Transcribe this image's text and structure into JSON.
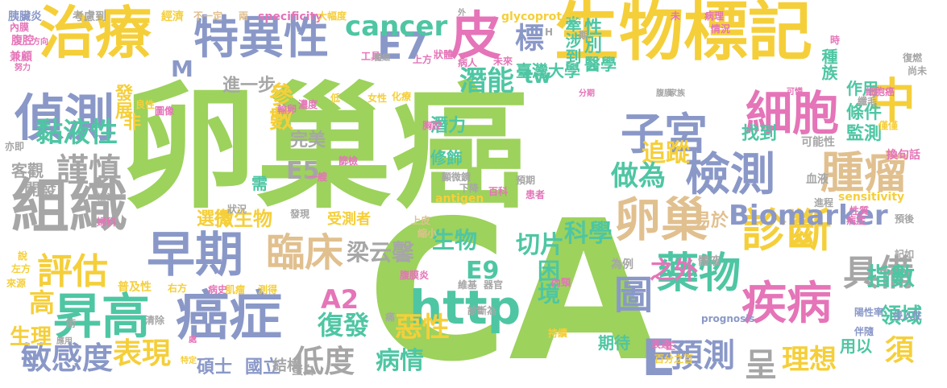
{
  "palette": {
    "green": "#9dd25c",
    "yellow": "#f5cf3a",
    "blue": "#8a98c8",
    "teal": "#4ec6a3",
    "pink": "#e574b8",
    "tan": "#e1c08f",
    "gray": "#a6a6a6",
    "orange": "#f1a55a",
    "light": "#cfcfcf"
  },
  "words": [
    "卵巢癌",
    "CA",
    "生物標記",
    "治療",
    "特異性",
    "皮",
    "E7",
    "偵測",
    "組織",
    "早期",
    "癌症",
    "昇高",
    "檢測",
    "細胞",
    "中",
    "腫瘤",
    "子宮",
    "卵巢",
    "診斷",
    "疾病",
    "Biomarker",
    "http",
    "圖",
    "藥物",
    "臨床",
    "評估",
    "謹慎",
    "黏液性",
    "cancer",
    "標",
    "潛能",
    "追蹤",
    "做為",
    "E",
    "預測",
    "具備",
    "敏感度",
    "表現",
    "低度",
    "A2",
    "復發",
    "惡性",
    "病情",
    "理想",
    "須",
    "指數",
    "之外",
    "E9",
    "困境",
    "切片",
    "科學",
    "生物",
    "梁云馨",
    "非",
    "發展",
    "參數",
    "進一步",
    "M",
    "tw",
    "臺灣大學",
    "醫學",
    "性別",
    "牽涉到",
    "種族",
    "監測",
    "作用",
    "條件",
    "找到",
    "客觀",
    "開發",
    "E5",
    "修飾",
    "完美",
    "潛力",
    "微生物",
    "選擇",
    "需",
    "受測者",
    "高",
    "生理",
    "國立",
    "碩士",
    "結構",
    "蛋白",
    "領域",
    "用以",
    "期待",
    "呈",
    "易於",
    "為例",
    "體液",
    "glycoprotein",
    "specificity",
    "antigen",
    "sensitivity",
    "prognosis",
    "考慮到",
    "經濟",
    "不一定",
    "兩",
    "大幅度",
    "胰臟炎",
    "腹腔",
    "內膜",
    "兼顧",
    "努力",
    "良性",
    "圖像",
    "低",
    "女性",
    "化療",
    "輸卵",
    "濃度",
    "胸腔",
    "顯微鏡",
    "下降",
    "百科",
    "患者",
    "上皮",
    "縮小",
    "腹膜炎",
    "維基",
    "器官",
    "內頸",
    "右方",
    "病史",
    "肌瘤",
    "測得",
    "左方",
    "來源",
    "說",
    "普及性",
    "陽性率",
    "伴隨",
    "侵入性",
    "表達",
    "正",
    "百分之百",
    "持續",
    "特定",
    "清除",
    "術",
    "細胞癌",
    "纖毛",
    "復燃",
    "尚未",
    "僅僅",
    "可能性",
    "換句話",
    "血液",
    "進程",
    "性質",
    "病症",
    "預後",
    "記如",
    "情況",
    "狀體",
    "上方",
    "工具",
    "病人",
    "病理",
    "未",
    "時",
    "H",
    "期",
    "方向",
    "外",
    "腹膜",
    "家族",
    "分期",
    "可憐",
    "亦即",
    "標準",
    "狀況",
    "發現",
    "一艘",
    "預期",
    "診斷為",
    "痛",
    "篩檢",
    "體細",
    "處",
    "婦科",
    "未來",
    "應用",
    "高敏感度",
    "發生",
    "的",
    "值得"
  ]
}
